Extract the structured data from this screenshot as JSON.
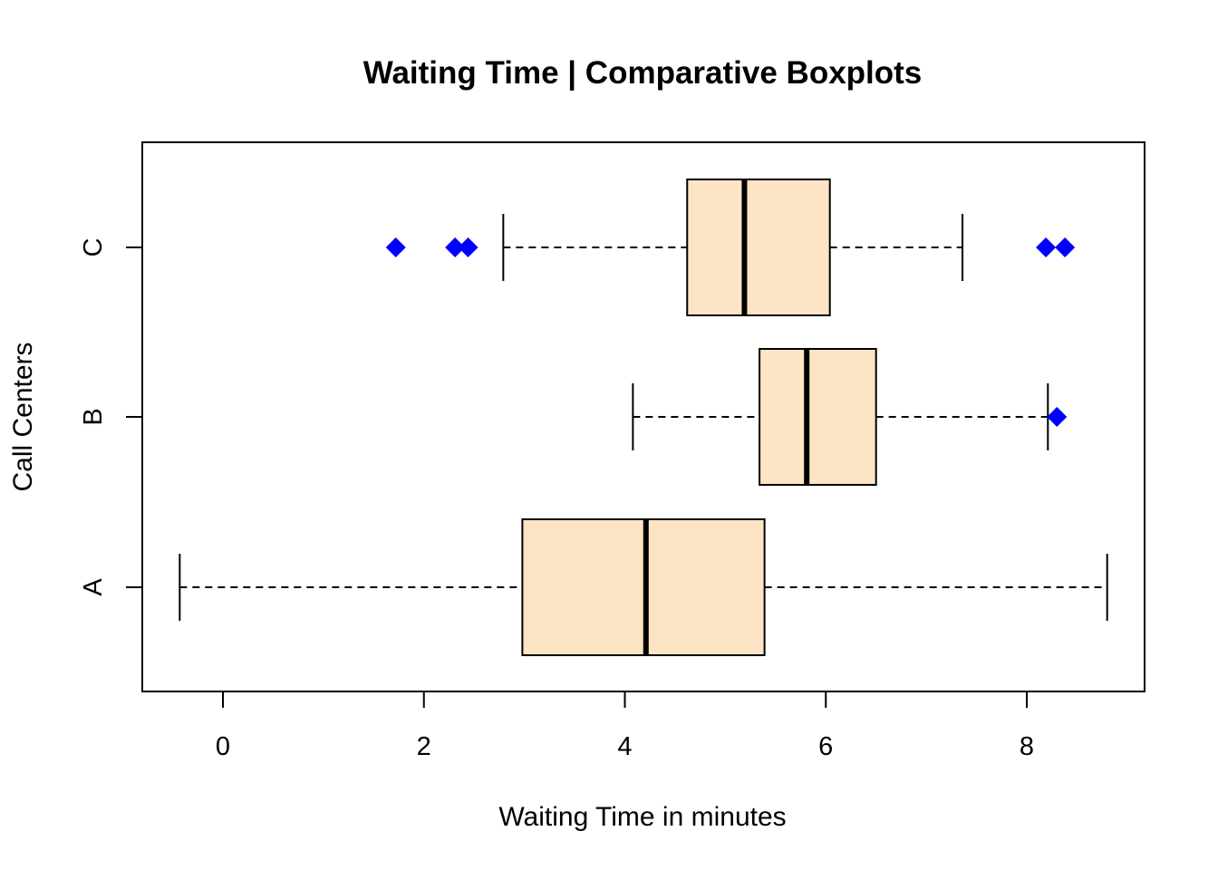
{
  "chart_data": {
    "type": "boxplot",
    "orientation": "horizontal",
    "title": "Waiting Time | Comparative Boxplots",
    "xlabel": "Waiting Time in minutes",
    "ylabel": "Call Centers",
    "xlim": [
      -0.8,
      9.17
    ],
    "xticks": [
      0,
      2,
      4,
      6,
      8
    ],
    "box_fill": "#FCE4C4",
    "outlier_color": "#0000FF",
    "groups": [
      {
        "name": "A",
        "whisker_low": -0.43,
        "q1": 2.98,
        "median": 4.21,
        "q3": 5.39,
        "whisker_high": 8.8,
        "outliers": []
      },
      {
        "name": "B",
        "whisker_low": 4.08,
        "q1": 5.34,
        "median": 5.81,
        "q3": 6.5,
        "whisker_high": 8.21,
        "outliers": [
          8.3
        ]
      },
      {
        "name": "C",
        "whisker_low": 2.79,
        "q1": 4.62,
        "median": 5.19,
        "q3": 6.04,
        "whisker_high": 7.36,
        "outliers": [
          1.72,
          2.31,
          2.44,
          8.19,
          8.38
        ]
      }
    ]
  }
}
